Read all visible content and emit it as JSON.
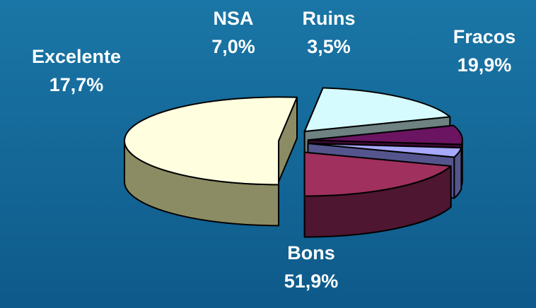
{
  "chart_data": {
    "type": "pie",
    "three_d": true,
    "exploded": true,
    "slices": [
      {
        "label": "Bons",
        "value": 51.9,
        "value_label": "51,9%",
        "top_color": "#ffffe0",
        "side_color": "#8c8c64"
      },
      {
        "label": "Excelente",
        "value": 17.7,
        "value_label": "17,7%",
        "top_color": "#d6fbff",
        "side_color": "#6e8282"
      },
      {
        "label": "NSA",
        "value": 7.0,
        "value_label": "7,0%",
        "top_color": "#6b1461",
        "side_color": "#3c0a32"
      },
      {
        "label": "Ruins",
        "value": 3.5,
        "value_label": "3,5%",
        "top_color": "#a8a8ff",
        "side_color": "#55558e"
      },
      {
        "label": "Fracos",
        "value": 19.9,
        "value_label": "19,9%",
        "top_color": "#a0305e",
        "side_color": "#4e1630"
      }
    ]
  }
}
